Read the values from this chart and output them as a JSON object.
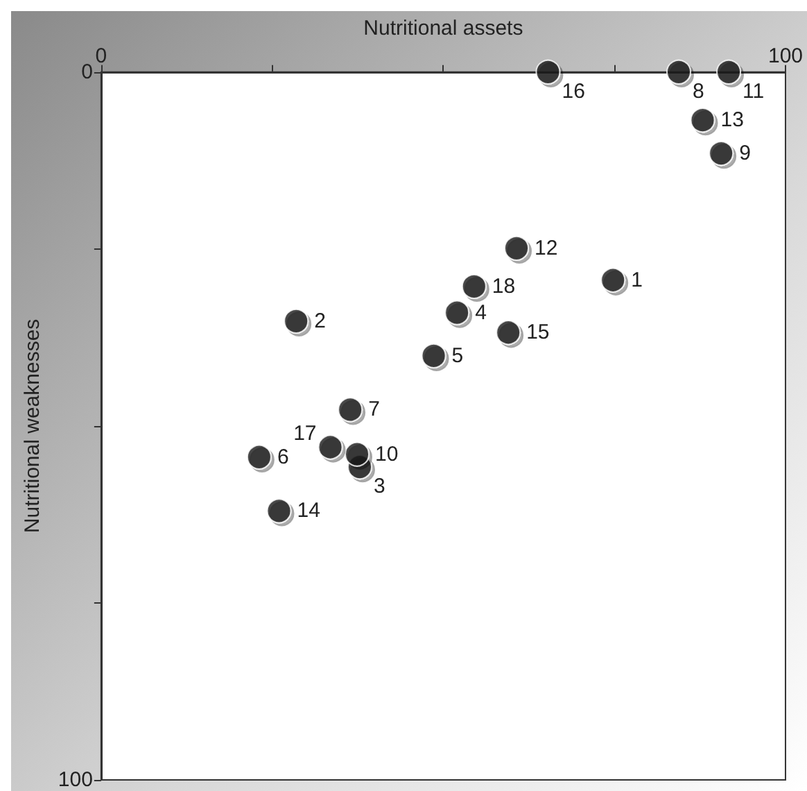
{
  "chart_data": {
    "type": "scatter",
    "xlabel": "Nutritional assets",
    "ylabel": "Nutritional weaknesses",
    "x": [
      74.8,
      28.5,
      37.8,
      52.0,
      48.6,
      23.1,
      36.4,
      84.4,
      90.6,
      37.4,
      91.7,
      60.7,
      87.9,
      26.0,
      59.5,
      65.3,
      33.5,
      54.5
    ],
    "values": [
      29.4,
      35.2,
      55.8,
      34.0,
      40.1,
      54.4,
      47.7,
      0,
      11.5,
      54.0,
      0,
      24.9,
      6.8,
      62.0,
      36.8,
      0,
      53.0,
      30.3
    ],
    "color": "#1a1a1a",
    "marker": "circle",
    "xlim": [
      0,
      100
    ],
    "ylim": [
      100,
      0
    ],
    "xticks": [
      0,
      {
        "value": 25,
        "label": null
      },
      {
        "value": 50,
        "label": null
      },
      {
        "value": 75,
        "label": null
      },
      100
    ],
    "yticks": [
      0,
      {
        "value": 25,
        "label": null
      },
      {
        "value": 50,
        "label": null
      },
      {
        "value": 75,
        "label": null
      },
      100
    ],
    "grid": false,
    "annotations": [
      {
        "text": "1",
        "x": 74.8,
        "y": 29.4
      },
      {
        "text": "2",
        "x": 28.5,
        "y": 35.2
      },
      {
        "text": "3",
        "x": 37.8,
        "y": 55.8
      },
      {
        "text": "4",
        "x": 52.0,
        "y": 34.0
      },
      {
        "text": "5",
        "x": 48.6,
        "y": 40.1
      },
      {
        "text": "6",
        "x": 23.1,
        "y": 54.4
      },
      {
        "text": "7",
        "x": 36.4,
        "y": 47.7
      },
      {
        "text": "8",
        "x": 84.4,
        "y": 0
      },
      {
        "text": "9",
        "x": 90.6,
        "y": 11.5
      },
      {
        "text": "10",
        "x": 37.4,
        "y": 54.0
      },
      {
        "text": "11",
        "x": 91.7,
        "y": 0
      },
      {
        "text": "12",
        "x": 60.7,
        "y": 24.9
      },
      {
        "text": "13",
        "x": 87.9,
        "y": 6.8
      },
      {
        "text": "14",
        "x": 26.0,
        "y": 62.0
      },
      {
        "text": "15",
        "x": 59.5,
        "y": 36.8
      },
      {
        "text": "16",
        "x": 65.3,
        "y": 0
      },
      {
        "text": "17",
        "x": 33.5,
        "y": 53.0
      },
      {
        "text": "18",
        "x": 54.5,
        "y": 30.3
      }
    ]
  }
}
